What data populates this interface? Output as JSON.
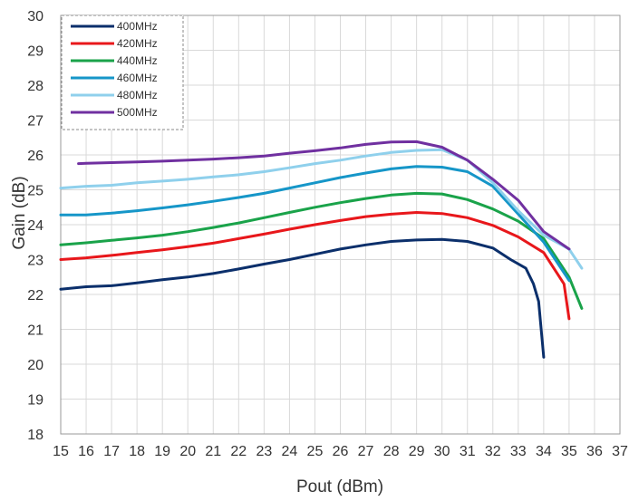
{
  "chart_data": {
    "type": "line",
    "xlabel": "Pout (dBm)",
    "ylabel": "Gain (dB)",
    "xlim": [
      15,
      37
    ],
    "ylim": [
      18,
      30
    ],
    "xticks": [
      "15",
      "16",
      "17",
      "18",
      "19",
      "20",
      "21",
      "22",
      "23",
      "24",
      "25",
      "26",
      "27",
      "28",
      "29",
      "30",
      "31",
      "32",
      "33",
      "34",
      "35",
      "36",
      "37"
    ],
    "yticks": [
      "18",
      "19",
      "20",
      "21",
      "22",
      "23",
      "24",
      "25",
      "26",
      "27",
      "28",
      "29",
      "30"
    ],
    "grid": true,
    "legend_position": "top-left",
    "series": [
      {
        "name": "400MHz",
        "color": "#0b2f6b",
        "points": [
          [
            15.0,
            22.15
          ],
          [
            16.0,
            22.22
          ],
          [
            17.0,
            22.25
          ],
          [
            18.0,
            22.33
          ],
          [
            19.0,
            22.42
          ],
          [
            20.0,
            22.5
          ],
          [
            21.0,
            22.6
          ],
          [
            22.0,
            22.73
          ],
          [
            23.0,
            22.87
          ],
          [
            24.0,
            23.0
          ],
          [
            25.0,
            23.15
          ],
          [
            26.0,
            23.3
          ],
          [
            27.0,
            23.42
          ],
          [
            28.0,
            23.52
          ],
          [
            29.0,
            23.56
          ],
          [
            30.0,
            23.58
          ],
          [
            31.0,
            23.52
          ],
          [
            32.0,
            23.33
          ],
          [
            32.7,
            23.0
          ],
          [
            33.3,
            22.75
          ],
          [
            33.6,
            22.3
          ],
          [
            33.8,
            21.8
          ],
          [
            34.0,
            20.2
          ]
        ]
      },
      {
        "name": "420MHz",
        "color": "#e8171b",
        "points": [
          [
            15.0,
            23.0
          ],
          [
            16.0,
            23.05
          ],
          [
            17.0,
            23.12
          ],
          [
            18.0,
            23.2
          ],
          [
            19.0,
            23.28
          ],
          [
            20.0,
            23.37
          ],
          [
            21.0,
            23.47
          ],
          [
            22.0,
            23.6
          ],
          [
            23.0,
            23.73
          ],
          [
            24.0,
            23.87
          ],
          [
            25.0,
            24.0
          ],
          [
            26.0,
            24.12
          ],
          [
            27.0,
            24.23
          ],
          [
            28.0,
            24.3
          ],
          [
            29.0,
            24.35
          ],
          [
            30.0,
            24.32
          ],
          [
            31.0,
            24.2
          ],
          [
            32.0,
            23.98
          ],
          [
            33.0,
            23.65
          ],
          [
            34.0,
            23.2
          ],
          [
            34.8,
            22.3
          ],
          [
            35.0,
            21.3
          ]
        ]
      },
      {
        "name": "440MHz",
        "color": "#1aa34a",
        "points": [
          [
            15.0,
            23.42
          ],
          [
            16.0,
            23.48
          ],
          [
            17.0,
            23.55
          ],
          [
            18.0,
            23.62
          ],
          [
            19.0,
            23.7
          ],
          [
            20.0,
            23.8
          ],
          [
            21.0,
            23.92
          ],
          [
            22.0,
            24.05
          ],
          [
            23.0,
            24.2
          ],
          [
            24.0,
            24.35
          ],
          [
            25.0,
            24.5
          ],
          [
            26.0,
            24.63
          ],
          [
            27.0,
            24.75
          ],
          [
            28.0,
            24.85
          ],
          [
            29.0,
            24.9
          ],
          [
            30.0,
            24.88
          ],
          [
            31.0,
            24.72
          ],
          [
            32.0,
            24.45
          ],
          [
            33.0,
            24.1
          ],
          [
            34.0,
            23.6
          ],
          [
            35.0,
            22.5
          ],
          [
            35.5,
            21.6
          ]
        ]
      },
      {
        "name": "460MHz",
        "color": "#1696c8",
        "points": [
          [
            15.0,
            24.28
          ],
          [
            16.0,
            24.28
          ],
          [
            17.0,
            24.33
          ],
          [
            18.0,
            24.4
          ],
          [
            19.0,
            24.48
          ],
          [
            20.0,
            24.57
          ],
          [
            21.0,
            24.67
          ],
          [
            22.0,
            24.78
          ],
          [
            23.0,
            24.9
          ],
          [
            24.0,
            25.05
          ],
          [
            25.0,
            25.2
          ],
          [
            26.0,
            25.35
          ],
          [
            27.0,
            25.48
          ],
          [
            28.0,
            25.6
          ],
          [
            29.0,
            25.67
          ],
          [
            30.0,
            25.65
          ],
          [
            31.0,
            25.52
          ],
          [
            32.0,
            25.1
          ],
          [
            33.0,
            24.3
          ],
          [
            34.0,
            23.5
          ],
          [
            35.0,
            22.4
          ]
        ]
      },
      {
        "name": "480MHz",
        "color": "#8fd0ec",
        "points": [
          [
            15.0,
            25.05
          ],
          [
            16.0,
            25.1
          ],
          [
            17.0,
            25.13
          ],
          [
            18.0,
            25.2
          ],
          [
            19.0,
            25.25
          ],
          [
            20.0,
            25.3
          ],
          [
            21.0,
            25.37
          ],
          [
            22.0,
            25.43
          ],
          [
            23.0,
            25.52
          ],
          [
            24.0,
            25.63
          ],
          [
            25.0,
            25.75
          ],
          [
            26.0,
            25.85
          ],
          [
            27.0,
            25.97
          ],
          [
            28.0,
            26.07
          ],
          [
            29.0,
            26.13
          ],
          [
            30.0,
            26.15
          ],
          [
            31.0,
            25.85
          ],
          [
            32.0,
            25.2
          ],
          [
            33.0,
            24.4
          ],
          [
            34.0,
            23.7
          ],
          [
            35.0,
            23.3
          ],
          [
            35.5,
            22.75
          ]
        ]
      },
      {
        "name": "500MHz",
        "color": "#7030a0",
        "points": [
          [
            15.7,
            25.75
          ],
          [
            16.0,
            25.76
          ],
          [
            17.0,
            25.78
          ],
          [
            18.0,
            25.8
          ],
          [
            19.0,
            25.82
          ],
          [
            20.0,
            25.85
          ],
          [
            21.0,
            25.88
          ],
          [
            22.0,
            25.92
          ],
          [
            23.0,
            25.97
          ],
          [
            24.0,
            26.05
          ],
          [
            25.0,
            26.12
          ],
          [
            26.0,
            26.2
          ],
          [
            27.0,
            26.3
          ],
          [
            28.0,
            26.37
          ],
          [
            29.0,
            26.38
          ],
          [
            30.0,
            26.22
          ],
          [
            31.0,
            25.85
          ],
          [
            32.0,
            25.3
          ],
          [
            33.0,
            24.7
          ],
          [
            34.0,
            23.8
          ],
          [
            35.0,
            23.3
          ]
        ]
      }
    ]
  }
}
